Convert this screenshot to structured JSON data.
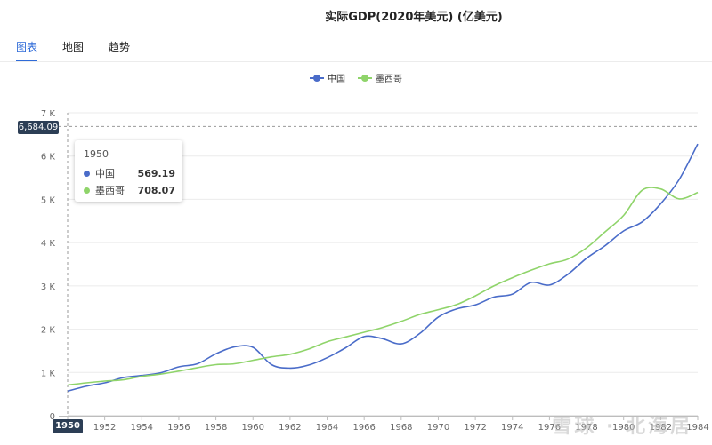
{
  "header": {
    "title": "实际GDP(2020年美元) (亿美元)"
  },
  "tabs": [
    {
      "label": "图表",
      "active": true
    },
    {
      "label": "地图",
      "active": false
    },
    {
      "label": "趋势",
      "active": false
    }
  ],
  "colors": {
    "china": "#4a6cc9",
    "mexico": "#8fd46a",
    "accent": "#2f6bd8",
    "badge": "#2c3e55"
  },
  "tooltip": {
    "year": "1950",
    "rows": [
      {
        "name": "中国",
        "value": "569.19"
      },
      {
        "name": "墨西哥",
        "value": "708.07"
      }
    ]
  },
  "crosshair": {
    "y_label": "6,684.09",
    "x_label": "1950"
  },
  "watermark": "雪球 · 北海居",
  "chart_data": {
    "type": "line",
    "title": "实际GDP(2020年美元) (亿美元)",
    "xlabel": "",
    "ylabel": "",
    "xlim": [
      1950,
      1984
    ],
    "ylim": [
      0,
      7000
    ],
    "y_ticks": [
      0,
      1000,
      2000,
      3000,
      4000,
      5000,
      6000,
      7000
    ],
    "y_tick_labels": [
      "0",
      "1 K",
      "2 K",
      "3 K",
      "4 K",
      "5 K",
      "6 K",
      "7 K"
    ],
    "x_ticks": [
      1950,
      1952,
      1954,
      1956,
      1958,
      1960,
      1962,
      1964,
      1966,
      1968,
      1970,
      1972,
      1974,
      1976,
      1978,
      1980,
      1982,
      1984
    ],
    "legend_position": "top-center",
    "series": [
      {
        "name": "中国",
        "color": "#4a6cc9",
        "x": [
          1950,
          1951,
          1952,
          1953,
          1954,
          1955,
          1956,
          1957,
          1958,
          1959,
          1960,
          1961,
          1962,
          1963,
          1964,
          1965,
          1966,
          1967,
          1968,
          1969,
          1970,
          1971,
          1972,
          1973,
          1974,
          1975,
          1976,
          1977,
          1978,
          1979,
          1980,
          1981,
          1982,
          1983,
          1984
        ],
        "values": [
          569,
          680,
          760,
          880,
          930,
          990,
          1130,
          1200,
          1430,
          1590,
          1580,
          1180,
          1100,
          1170,
          1340,
          1570,
          1830,
          1780,
          1660,
          1900,
          2280,
          2470,
          2560,
          2740,
          2810,
          3080,
          3020,
          3270,
          3640,
          3930,
          4270,
          4480,
          4900,
          5460,
          6280
        ]
      },
      {
        "name": "墨西哥",
        "color": "#8fd46a",
        "x": [
          1950,
          1951,
          1952,
          1953,
          1954,
          1955,
          1956,
          1957,
          1958,
          1959,
          1960,
          1961,
          1962,
          1963,
          1964,
          1965,
          1966,
          1967,
          1968,
          1969,
          1970,
          1971,
          1972,
          1973,
          1974,
          1975,
          1976,
          1977,
          1978,
          1979,
          1980,
          1981,
          1982,
          1983,
          1984
        ],
        "values": [
          708,
          760,
          800,
          830,
          910,
          960,
          1030,
          1110,
          1180,
          1200,
          1280,
          1360,
          1420,
          1540,
          1710,
          1820,
          1930,
          2040,
          2180,
          2340,
          2450,
          2570,
          2770,
          3000,
          3190,
          3360,
          3510,
          3620,
          3880,
          4250,
          4630,
          5210,
          5240,
          5010,
          5160
        ]
      }
    ]
  }
}
